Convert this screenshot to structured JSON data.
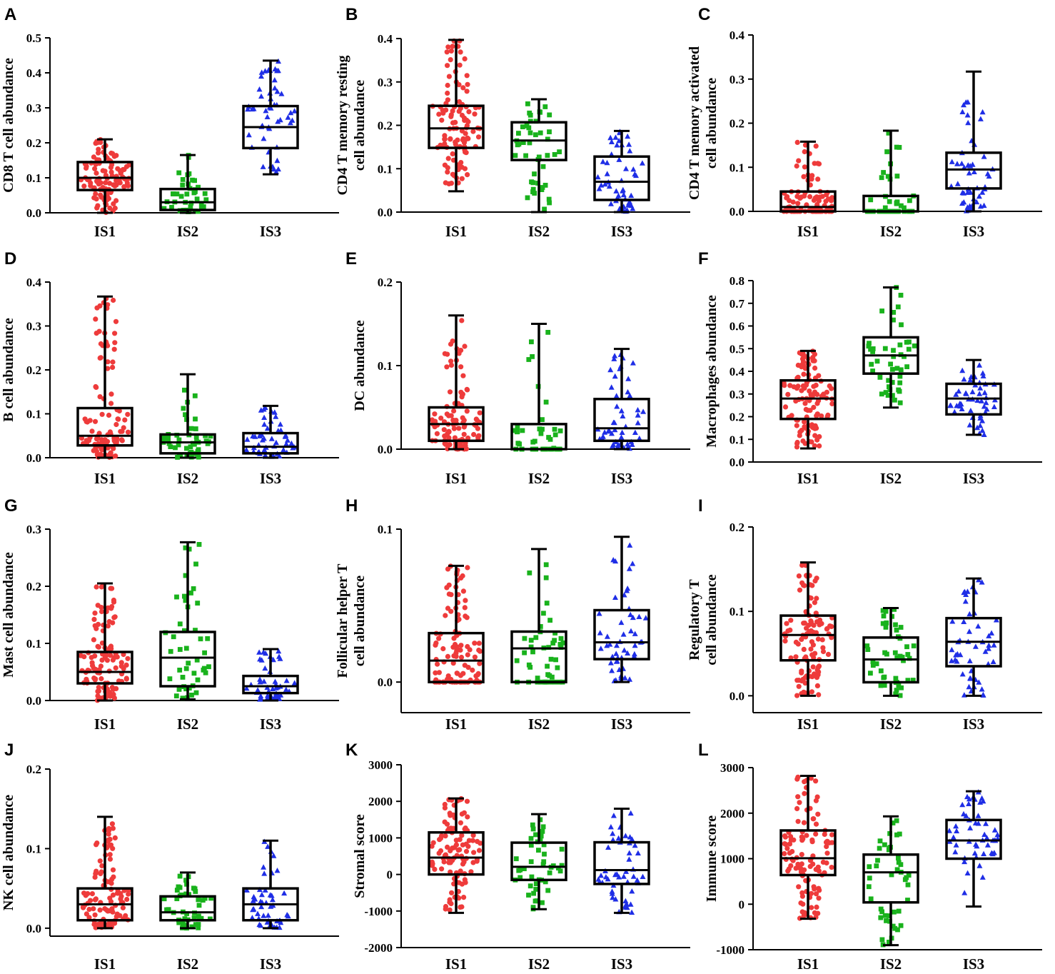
{
  "colors": {
    "IS1": "#ee3b3b",
    "IS2": "#19b21c",
    "IS3": "#1f2ee6"
  },
  "chart_data": [
    {
      "type": "box",
      "label": "A",
      "ylabel": [
        "CD8 T cell abundance"
      ],
      "categories": [
        "IS1",
        "IS2",
        "IS3"
      ],
      "ylim": [
        0,
        0.5
      ],
      "ticks": [
        0.0,
        0.1,
        0.2,
        0.3,
        0.4,
        0.5
      ],
      "tickFormat": "0.0",
      "boxes": [
        {
          "min": 0.0,
          "q1": 0.065,
          "median": 0.1,
          "q3": 0.145,
          "max": 0.21,
          "n": 110
        },
        {
          "min": 0.0,
          "q1": 0.008,
          "median": 0.03,
          "q3": 0.068,
          "max": 0.165,
          "n": 45
        },
        {
          "min": 0.11,
          "q1": 0.185,
          "median": 0.245,
          "q3": 0.305,
          "max": 0.435,
          "n": 50
        }
      ]
    },
    {
      "type": "box",
      "label": "B",
      "ylabel": [
        "CD4 T memory resting",
        "cell abundance"
      ],
      "categories": [
        "IS1",
        "IS2",
        "IS3"
      ],
      "ylim": [
        0,
        0.4
      ],
      "ticks": [
        0.0,
        0.1,
        0.2,
        0.3,
        0.4
      ],
      "tickFormat": "0.0",
      "boxes": [
        {
          "min": 0.048,
          "q1": 0.148,
          "median": 0.193,
          "q3": 0.245,
          "max": 0.397,
          "n": 110
        },
        {
          "min": 0.0,
          "q1": 0.12,
          "median": 0.165,
          "q3": 0.207,
          "max": 0.26,
          "n": 45
        },
        {
          "min": 0.0,
          "q1": 0.028,
          "median": 0.07,
          "q3": 0.128,
          "max": 0.187,
          "n": 50
        }
      ]
    },
    {
      "type": "box",
      "label": "C",
      "ylabel": [
        "CD4 T memory activated",
        "cell abundance"
      ],
      "categories": [
        "IS1",
        "IS2",
        "IS3"
      ],
      "ylim": [
        0,
        0.4
      ],
      "ticks": [
        0.0,
        0.1,
        0.2,
        0.3,
        0.4
      ],
      "tickFormat": "0.0",
      "boxes": [
        {
          "min": 0.0,
          "q1": 0.0,
          "median": 0.01,
          "q3": 0.045,
          "max": 0.158,
          "n": 110
        },
        {
          "min": 0.0,
          "q1": 0.0,
          "median": 0.0,
          "q3": 0.035,
          "max": 0.183,
          "n": 45
        },
        {
          "min": 0.0,
          "q1": 0.052,
          "median": 0.095,
          "q3": 0.133,
          "max": 0.317,
          "n": 50
        }
      ]
    },
    {
      "type": "box",
      "label": "D",
      "ylabel": [
        "B cell abundance"
      ],
      "categories": [
        "IS1",
        "IS2",
        "IS3"
      ],
      "ylim": [
        0,
        0.4
      ],
      "ticks": [
        0.0,
        0.1,
        0.2,
        0.3,
        0.4
      ],
      "tickFormat": "0.0",
      "boxes": [
        {
          "min": 0.0,
          "q1": 0.028,
          "median": 0.05,
          "q3": 0.113,
          "max": 0.367,
          "n": 110
        },
        {
          "min": 0.0,
          "q1": 0.01,
          "median": 0.035,
          "q3": 0.053,
          "max": 0.19,
          "n": 45
        },
        {
          "min": 0.0,
          "q1": 0.01,
          "median": 0.025,
          "q3": 0.056,
          "max": 0.118,
          "n": 50
        }
      ]
    },
    {
      "type": "box",
      "label": "E",
      "ylabel": [
        "DC abundance"
      ],
      "categories": [
        "IS1",
        "IS2",
        "IS3"
      ],
      "ylim": [
        0,
        0.2
      ],
      "ticks": [
        0.0,
        0.1,
        0.2
      ],
      "tickFormat": "0.0",
      "boxes": [
        {
          "min": 0.0,
          "q1": 0.01,
          "median": 0.03,
          "q3": 0.05,
          "max": 0.16,
          "n": 110
        },
        {
          "min": 0.0,
          "q1": 0.0,
          "median": 0.0,
          "q3": 0.03,
          "max": 0.15,
          "n": 45
        },
        {
          "min": 0.0,
          "q1": 0.01,
          "median": 0.025,
          "q3": 0.06,
          "max": 0.12,
          "n": 50
        }
      ]
    },
    {
      "type": "box",
      "label": "F",
      "ylabel": [
        "Macrophages abundance"
      ],
      "categories": [
        "IS1",
        "IS2",
        "IS3"
      ],
      "ylim": [
        0,
        0.8
      ],
      "ticks": [
        0.0,
        0.1,
        0.2,
        0.3,
        0.4,
        0.5,
        0.6,
        0.7,
        0.8
      ],
      "tickFormat": "0.0",
      "boxes": [
        {
          "min": 0.06,
          "q1": 0.19,
          "median": 0.28,
          "q3": 0.36,
          "max": 0.49,
          "n": 110
        },
        {
          "min": 0.24,
          "q1": 0.39,
          "median": 0.47,
          "q3": 0.55,
          "max": 0.77,
          "n": 45
        },
        {
          "min": 0.12,
          "q1": 0.21,
          "median": 0.28,
          "q3": 0.345,
          "max": 0.45,
          "n": 50
        }
      ]
    },
    {
      "type": "box",
      "label": "G",
      "ylabel": [
        "Mast cell abundance"
      ],
      "categories": [
        "IS1",
        "IS2",
        "IS3"
      ],
      "ylim": [
        0,
        0.3
      ],
      "ticks": [
        0.0,
        0.1,
        0.2,
        0.3
      ],
      "tickFormat": "0.0",
      "boxes": [
        {
          "min": 0.0,
          "q1": 0.03,
          "median": 0.05,
          "q3": 0.085,
          "max": 0.205,
          "n": 110
        },
        {
          "min": 0.002,
          "q1": 0.025,
          "median": 0.075,
          "q3": 0.12,
          "max": 0.277,
          "n": 45
        },
        {
          "min": 0.0,
          "q1": 0.013,
          "median": 0.025,
          "q3": 0.043,
          "max": 0.09,
          "n": 50
        }
      ]
    },
    {
      "type": "box",
      "label": "H",
      "ylabel": [
        "Follicular helper T",
        "cell abundance"
      ],
      "categories": [
        "IS1",
        "IS2",
        "IS3"
      ],
      "ylim": [
        -0.02,
        0.1
      ],
      "ticks": [
        0.0,
        0.1
      ],
      "tickFormat": "0.0",
      "boxes": [
        {
          "min": 0.0,
          "q1": 0.0,
          "median": 0.014,
          "q3": 0.032,
          "max": 0.076,
          "n": 110
        },
        {
          "min": 0.0,
          "q1": 0.0,
          "median": 0.022,
          "q3": 0.033,
          "max": 0.087,
          "n": 45
        },
        {
          "min": 0.0,
          "q1": 0.015,
          "median": 0.026,
          "q3": 0.047,
          "max": 0.095,
          "n": 50
        }
      ]
    },
    {
      "type": "box",
      "label": "I",
      "ylabel": [
        "Regulatory T",
        "cell abundance"
      ],
      "categories": [
        "IS1",
        "IS2",
        "IS3"
      ],
      "ylim": [
        -0.02,
        0.2
      ],
      "ticks": [
        0.0,
        0.1,
        0.2
      ],
      "tickFormat": "0.0",
      "boxes": [
        {
          "min": 0.0,
          "q1": 0.042,
          "median": 0.072,
          "q3": 0.095,
          "max": 0.158,
          "n": 110
        },
        {
          "min": 0.0,
          "q1": 0.016,
          "median": 0.043,
          "q3": 0.069,
          "max": 0.104,
          "n": 45
        },
        {
          "min": 0.0,
          "q1": 0.035,
          "median": 0.064,
          "q3": 0.092,
          "max": 0.139,
          "n": 50
        }
      ]
    },
    {
      "type": "box",
      "label": "J",
      "ylabel": [
        "NK cell abundance"
      ],
      "categories": [
        "IS1",
        "IS2",
        "IS3"
      ],
      "ylim": [
        -0.01,
        0.2
      ],
      "ticks": [
        0.0,
        0.1,
        0.2
      ],
      "tickFormat": "0.0",
      "boxes": [
        {
          "min": 0.0,
          "q1": 0.01,
          "median": 0.03,
          "q3": 0.05,
          "max": 0.14,
          "n": 110
        },
        {
          "min": 0.0,
          "q1": 0.01,
          "median": 0.02,
          "q3": 0.04,
          "max": 0.07,
          "n": 45
        },
        {
          "min": 0.0,
          "q1": 0.01,
          "median": 0.03,
          "q3": 0.05,
          "max": 0.11,
          "n": 50
        }
      ]
    },
    {
      "type": "box",
      "label": "K",
      "ylabel": [
        "Stromal score"
      ],
      "categories": [
        "IS1",
        "IS2",
        "IS3"
      ],
      "ylim": [
        -2000,
        3000
      ],
      "ticks": [
        -2000,
        -1000,
        0,
        1000,
        2000,
        3000
      ],
      "tickFormat": "int",
      "boxes": [
        {
          "min": -1050,
          "q1": 0,
          "median": 460,
          "q3": 1150,
          "max": 2080,
          "n": 110
        },
        {
          "min": -950,
          "q1": -150,
          "median": 210,
          "q3": 870,
          "max": 1650,
          "n": 45
        },
        {
          "min": -1050,
          "q1": -260,
          "median": 120,
          "q3": 880,
          "max": 1800,
          "n": 50
        }
      ]
    },
    {
      "type": "box",
      "label": "L",
      "ylabel": [
        "Immune score"
      ],
      "categories": [
        "IS1",
        "IS2",
        "IS3"
      ],
      "ylim": [
        -1000,
        3000
      ],
      "ticks": [
        -1000,
        0,
        1000,
        2000,
        3000
      ],
      "tickFormat": "int",
      "boxes": [
        {
          "min": -320,
          "q1": 640,
          "median": 1010,
          "q3": 1620,
          "max": 2820,
          "n": 110
        },
        {
          "min": -900,
          "q1": 40,
          "median": 700,
          "q3": 1090,
          "max": 1930,
          "n": 45
        },
        {
          "min": -50,
          "q1": 1000,
          "median": 1400,
          "q3": 1850,
          "max": 2480,
          "n": 50
        }
      ]
    }
  ]
}
